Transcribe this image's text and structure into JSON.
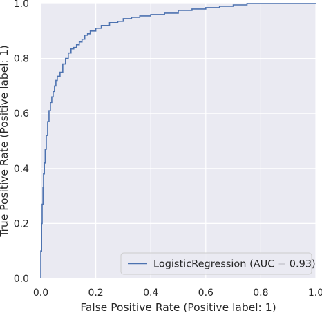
{
  "chart_data": {
    "type": "line",
    "title": "",
    "xlabel": "False Positive Rate (Positive label: 1)",
    "ylabel": "True Positive Rate (Positive label: 1)",
    "xlim": [
      0,
      1
    ],
    "ylim": [
      0,
      1
    ],
    "x_ticks": [
      "0.0",
      "0.2",
      "0.4",
      "0.6",
      "0.8",
      "1.0"
    ],
    "y_ticks": [
      "0.0",
      "0.2",
      "0.4",
      "0.6",
      "0.8",
      "1.0"
    ],
    "grid": true,
    "legend_position": "bottom-right",
    "colors": {
      "background": "#eaeaf2",
      "grid": "#ffffff",
      "line": "#4c72b0",
      "text": "#262626"
    },
    "series": [
      {
        "name": "LogisticRegression (AUC = 0.93)",
        "x": [
          0.0,
          0.0,
          0.003,
          0.005,
          0.008,
          0.01,
          0.013,
          0.016,
          0.02,
          0.025,
          0.03,
          0.035,
          0.04,
          0.045,
          0.05,
          0.055,
          0.06,
          0.07,
          0.08,
          0.09,
          0.1,
          0.11,
          0.12,
          0.13,
          0.14,
          0.15,
          0.16,
          0.17,
          0.18,
          0.2,
          0.22,
          0.25,
          0.28,
          0.3,
          0.33,
          0.36,
          0.4,
          0.45,
          0.5,
          0.55,
          0.6,
          0.65,
          0.7,
          0.75,
          0.8,
          0.9,
          1.0
        ],
        "y": [
          0.0,
          0.1,
          0.2,
          0.27,
          0.33,
          0.38,
          0.42,
          0.47,
          0.52,
          0.57,
          0.61,
          0.64,
          0.66,
          0.68,
          0.7,
          0.72,
          0.735,
          0.75,
          0.78,
          0.8,
          0.82,
          0.835,
          0.84,
          0.85,
          0.86,
          0.87,
          0.885,
          0.89,
          0.9,
          0.91,
          0.92,
          0.93,
          0.935,
          0.945,
          0.95,
          0.955,
          0.96,
          0.965,
          0.975,
          0.98,
          0.985,
          0.99,
          0.995,
          1.0,
          1.0,
          1.0,
          1.0
        ]
      }
    ]
  }
}
